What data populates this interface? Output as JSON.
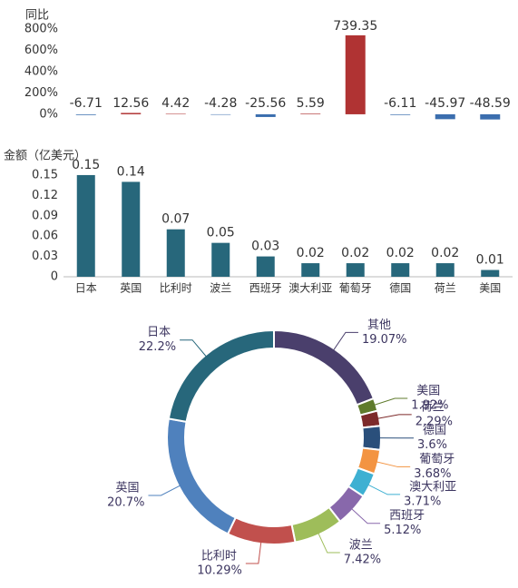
{
  "chart_data": [
    {
      "type": "bar",
      "title": "同比",
      "values": [
        -6.71,
        12.56,
        4.42,
        -4.28,
        -25.56,
        5.59,
        739.35,
        -6.11,
        -45.97,
        -48.59
      ],
      "positive_color": "#b03333",
      "negative_color": "#3b6eae",
      "ylim": [
        -60,
        900
      ],
      "yticks": [
        {
          "value": 0,
          "label": "0%"
        },
        {
          "value": 200,
          "label": "200%"
        },
        {
          "value": 400,
          "label": "400%"
        },
        {
          "value": 600,
          "label": "600%"
        },
        {
          "value": 800,
          "label": "800%"
        }
      ]
    },
    {
      "type": "bar",
      "title": "金额（亿美元）",
      "categories": [
        "日本",
        "英国",
        "比利时",
        "波兰",
        "西班牙",
        "澳大利亚",
        "葡萄牙",
        "德国",
        "荷兰",
        "美国"
      ],
      "values": [
        0.15,
        0.14,
        0.07,
        0.05,
        0.03,
        0.02,
        0.02,
        0.02,
        0.02,
        0.01
      ],
      "color": "#27677b",
      "ylim": [
        0,
        0.17
      ],
      "yticks": [
        0,
        0.03,
        0.06,
        0.09,
        0.12,
        0.15
      ]
    },
    {
      "type": "donut",
      "categories": [
        "其他",
        "美国",
        "荷兰",
        "德国",
        "葡萄牙",
        "澳大利亚",
        "西班牙",
        "波兰",
        "比利时",
        "英国",
        "日本"
      ],
      "values": [
        19.07,
        1.92,
        2.29,
        3.6,
        3.68,
        3.71,
        5.12,
        7.42,
        10.29,
        20.7,
        22.2
      ],
      "value_labels": [
        "19.07%",
        "1.92%",
        "2.29%",
        "3.6%",
        "3.68%",
        "3.71%",
        "5.12%",
        "7.42%",
        "10.29%",
        "20.7%",
        "22.2%"
      ],
      "colors": [
        "#4a3f6c",
        "#5f7b2c",
        "#7d2a2a",
        "#2a4f7b",
        "#f39442",
        "#3eb0d2",
        "#8868ab",
        "#9ebd5a",
        "#c1504d",
        "#4f81bd",
        "#27677b"
      ]
    }
  ]
}
